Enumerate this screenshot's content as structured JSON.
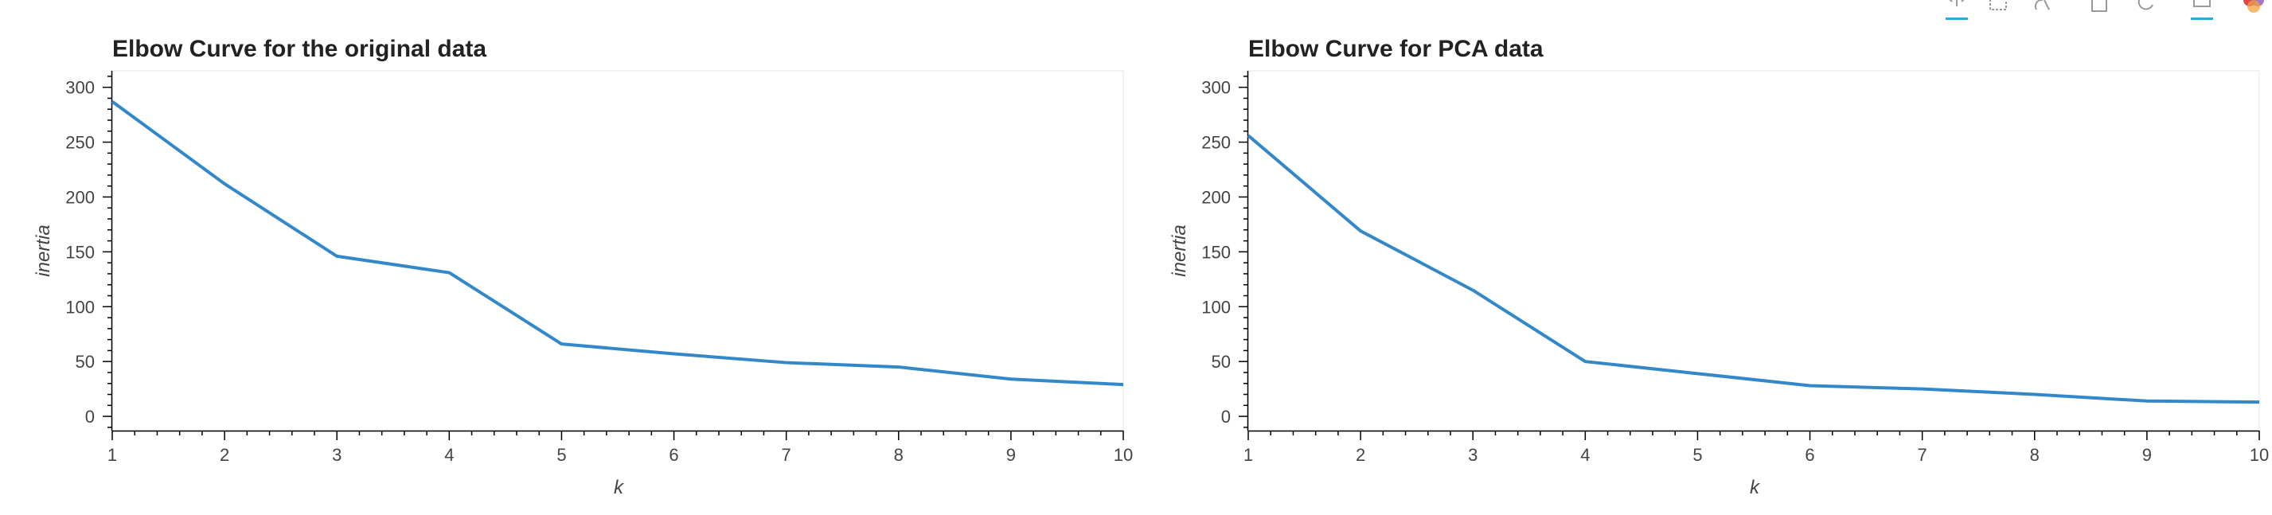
{
  "chart_data": [
    {
      "type": "line",
      "title": "Elbow Curve for the original data",
      "xlabel": "k",
      "ylabel": "inertia",
      "x": [
        1,
        2,
        3,
        4,
        5,
        6,
        7,
        8,
        9,
        10
      ],
      "values": [
        287,
        212,
        146,
        131,
        66,
        57,
        49,
        45,
        34,
        29
      ],
      "xlim": [
        1,
        10
      ],
      "ylim": [
        -13,
        315
      ],
      "yticks": [
        0,
        50,
        100,
        150,
        200,
        250,
        300
      ],
      "xticks": [
        1,
        2,
        3,
        4,
        5,
        6,
        7,
        8,
        9,
        10
      ],
      "color": "#3288c8",
      "grid": false,
      "legend": "none"
    },
    {
      "type": "line",
      "title": "Elbow Curve for PCA data",
      "xlabel": "k",
      "ylabel": "inertia",
      "x": [
        1,
        2,
        3,
        4,
        5,
        6,
        7,
        8,
        9,
        10
      ],
      "values": [
        256,
        169,
        115,
        50,
        39,
        28,
        25,
        20,
        14,
        13
      ],
      "xlim": [
        1,
        10
      ],
      "ylim": [
        -13,
        315
      ],
      "yticks": [
        0,
        50,
        100,
        150,
        200,
        250,
        300
      ],
      "xticks": [
        1,
        2,
        3,
        4,
        5,
        6,
        7,
        8,
        9,
        10
      ],
      "color": "#3288c8",
      "grid": false,
      "legend": "none"
    }
  ],
  "toolbar": {
    "tools": [
      "pan-icon",
      "box-zoom-icon",
      "wheel-zoom-icon",
      "save-icon",
      "reset-icon",
      "hover-icon",
      "bokeh-logo-icon"
    ],
    "accent": "#26aae1"
  }
}
